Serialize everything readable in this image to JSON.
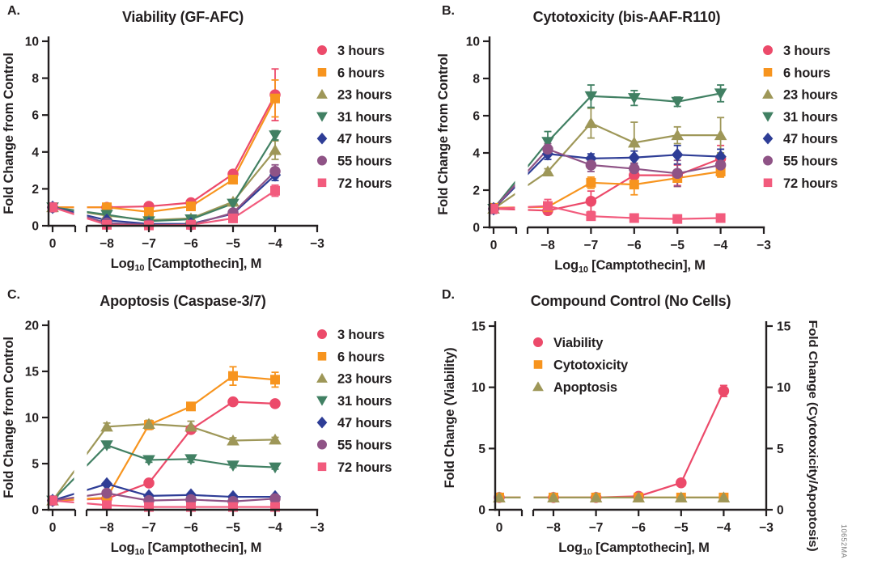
{
  "figure_code": "10652MA",
  "x_axis": {
    "label_log": "Log",
    "label_sub": "10",
    "label_rest": " [Camptothecin], M",
    "label_full": "Log10 [Camptothecin], M",
    "ticks": [
      "0",
      "−8",
      "−7",
      "−6",
      "−5",
      "−4",
      "−3"
    ],
    "axis_break": true
  },
  "chart_data": [
    {
      "letter": "A.",
      "type": "line",
      "title": "Viability (GF-AFC)",
      "ylabel": "Fold Change from Control",
      "ylim": [
        0,
        10
      ],
      "yticks": [
        0,
        2,
        4,
        6,
        8,
        10
      ],
      "x": [
        0,
        -8,
        -7,
        -6,
        -5,
        -4
      ],
      "legend_position": "right",
      "series": [
        {
          "name": "3 hours",
          "marker": "circle",
          "color": "#EC4A6A",
          "values": [
            1.0,
            1.0,
            1.05,
            1.25,
            2.8,
            7.1
          ],
          "err": [
            0,
            0,
            0,
            0,
            0.2,
            1.4
          ]
        },
        {
          "name": "6 hours",
          "marker": "square",
          "color": "#F7941E",
          "values": [
            1.0,
            1.0,
            0.75,
            1.05,
            2.5,
            6.9
          ],
          "err": [
            0,
            0,
            0.12,
            0.12,
            0.18,
            1.0
          ]
        },
        {
          "name": "23 hours",
          "marker": "triangle-up",
          "color": "#9E9758",
          "values": [
            1.0,
            0.55,
            0.3,
            0.4,
            1.3,
            4.1
          ],
          "err": [
            0,
            0,
            0,
            0,
            0.12,
            0.5
          ]
        },
        {
          "name": "31 hours",
          "marker": "triangle-down",
          "color": "#418063",
          "values": [
            1.0,
            0.6,
            0.25,
            0.35,
            1.2,
            4.9
          ],
          "err": [
            0,
            0,
            0,
            0,
            0.12,
            0.25
          ]
        },
        {
          "name": "47 hours",
          "marker": "diamond",
          "color": "#2E3D96",
          "values": [
            1.0,
            0.3,
            0.1,
            0.1,
            0.65,
            2.75
          ],
          "err": [
            0,
            0,
            0,
            0,
            0,
            0.3
          ]
        },
        {
          "name": "55 hours",
          "marker": "circle",
          "color": "#8F5386",
          "values": [
            1.0,
            0.15,
            0.05,
            0.05,
            0.7,
            2.95
          ],
          "err": [
            0,
            0,
            0,
            0,
            0,
            0.35
          ]
        },
        {
          "name": "72 hours",
          "marker": "square",
          "color": "#F25B7D",
          "values": [
            1.0,
            0.05,
            0.02,
            0.05,
            0.4,
            1.9
          ],
          "err": [
            0,
            0,
            0,
            0,
            0,
            0.3
          ]
        }
      ]
    },
    {
      "letter": "B.",
      "type": "line",
      "title": "Cytotoxicity (bis-AAF-R110)",
      "ylabel": "Fold Change from Control",
      "ylim": [
        0,
        10
      ],
      "yticks": [
        0,
        2,
        4,
        6,
        8,
        10
      ],
      "x": [
        0,
        -8,
        -7,
        -6,
        -5,
        -4
      ],
      "legend_position": "right",
      "series": [
        {
          "name": "3 hours",
          "marker": "circle",
          "color": "#EC4A6A",
          "values": [
            1.0,
            0.9,
            1.4,
            2.8,
            2.8,
            3.7
          ],
          "err": [
            0.25,
            0.2,
            0.55,
            0.3,
            0.55,
            0.7
          ]
        },
        {
          "name": "6 hours",
          "marker": "square",
          "color": "#F7941E",
          "values": [
            1.05,
            1.1,
            2.4,
            2.3,
            2.65,
            3.0
          ],
          "err": [
            0.2,
            0.15,
            0.3,
            0.55,
            0.45,
            0.3
          ]
        },
        {
          "name": "23 hours",
          "marker": "triangle-up",
          "color": "#9E9758",
          "values": [
            1.0,
            3.0,
            5.6,
            4.55,
            4.95,
            4.95
          ],
          "err": [
            0,
            0.15,
            0.8,
            1.1,
            0.45,
            0.95
          ]
        },
        {
          "name": "31 hours",
          "marker": "triangle-down",
          "color": "#418063",
          "values": [
            1.0,
            4.6,
            7.05,
            6.95,
            6.75,
            7.2
          ],
          "err": [
            0,
            0.55,
            0.6,
            0.4,
            0.25,
            0.45
          ]
        },
        {
          "name": "47 hours",
          "marker": "diamond",
          "color": "#2E3D96",
          "values": [
            1.0,
            3.95,
            3.7,
            3.75,
            3.9,
            3.8
          ],
          "err": [
            0,
            0.3,
            0.25,
            0.35,
            0.5,
            0.4
          ]
        },
        {
          "name": "55 hours",
          "marker": "circle",
          "color": "#8F5386",
          "values": [
            1.0,
            4.2,
            3.35,
            3.15,
            2.9,
            3.35
          ],
          "err": [
            0,
            0.3,
            0.35,
            0.3,
            0.7,
            0.35
          ]
        },
        {
          "name": "72 hours",
          "marker": "square",
          "color": "#F25B7D",
          "values": [
            1.0,
            1.15,
            0.6,
            0.5,
            0.45,
            0.5
          ],
          "err": [
            0.15,
            0.35,
            0.2,
            0.1,
            0.1,
            0.1
          ]
        }
      ]
    },
    {
      "letter": "C.",
      "type": "line",
      "title": "Apoptosis (Caspase-3/7)",
      "ylabel": "Fold Change from Control",
      "ylim": [
        0,
        20
      ],
      "yticks": [
        0,
        5,
        10,
        15,
        20
      ],
      "x": [
        0,
        -8,
        -7,
        -6,
        -5,
        -4
      ],
      "legend_position": "right",
      "series": [
        {
          "name": "3 hours",
          "marker": "circle",
          "color": "#EC4A6A",
          "values": [
            1.0,
            1.2,
            2.9,
            8.7,
            11.7,
            11.5
          ],
          "err": [
            0,
            0,
            0.2,
            0.3,
            0.3,
            0.3
          ]
        },
        {
          "name": "6 hours",
          "marker": "square",
          "color": "#F7941E",
          "values": [
            1.0,
            1.3,
            9.2,
            11.2,
            14.5,
            14.1
          ],
          "err": [
            0,
            0.15,
            0.5,
            0.3,
            1.0,
            0.8
          ]
        },
        {
          "name": "23 hours",
          "marker": "triangle-up",
          "color": "#9E9758",
          "values": [
            1.0,
            9.0,
            9.3,
            9.0,
            7.5,
            7.6
          ],
          "err": [
            0,
            0.4,
            0.4,
            0.6,
            0.3,
            0.25
          ]
        },
        {
          "name": "31 hours",
          "marker": "triangle-down",
          "color": "#418063",
          "values": [
            1.0,
            7.0,
            5.4,
            5.5,
            4.8,
            4.6
          ],
          "err": [
            0,
            0.3,
            0.25,
            0.35,
            0.2,
            0.2
          ]
        },
        {
          "name": "47 hours",
          "marker": "diamond",
          "color": "#2E3D96",
          "values": [
            1.0,
            2.8,
            1.5,
            1.6,
            1.4,
            1.4
          ],
          "err": [
            0,
            0,
            0,
            0,
            0,
            0
          ]
        },
        {
          "name": "55 hours",
          "marker": "circle",
          "color": "#8F5386",
          "values": [
            1.0,
            1.8,
            1.0,
            1.1,
            0.9,
            1.2
          ],
          "err": [
            0,
            0,
            0,
            0,
            0,
            0
          ]
        },
        {
          "name": "72 hours",
          "marker": "square",
          "color": "#F25B7D",
          "values": [
            1.0,
            0.5,
            0.3,
            0.3,
            0.3,
            0.3
          ],
          "err": [
            0,
            0,
            0,
            0,
            0,
            0
          ]
        }
      ]
    },
    {
      "letter": "D.",
      "type": "line",
      "title": "Compound Control (No Cells)",
      "ylabel_left": "Fold Change (Viability)",
      "ylabel_right": "Fold Change (Cytotoxicity/Apoptosis)",
      "ylim": [
        0,
        15
      ],
      "yticks": [
        0,
        5,
        10,
        15
      ],
      "x": [
        0,
        -8,
        -7,
        -6,
        -5,
        -4
      ],
      "legend_position": "inside-top-left",
      "series": [
        {
          "name": "Viability",
          "marker": "circle",
          "color": "#EC4A6A",
          "values": [
            1.0,
            1.0,
            1.0,
            1.1,
            2.2,
            9.7
          ],
          "err": [
            0,
            0,
            0,
            0,
            0,
            0.45
          ]
        },
        {
          "name": "Cytotoxicity",
          "marker": "square",
          "color": "#F7941E",
          "values": [
            1.0,
            1.0,
            1.0,
            1.0,
            1.0,
            1.0
          ],
          "err": [
            0,
            0,
            0,
            0,
            0,
            0
          ]
        },
        {
          "name": "Apoptosis",
          "marker": "triangle-up",
          "color": "#9E9758",
          "values": [
            1.0,
            1.0,
            1.0,
            1.0,
            1.0,
            1.0
          ],
          "err": [
            0,
            0,
            0,
            0,
            0,
            0
          ]
        }
      ]
    }
  ]
}
